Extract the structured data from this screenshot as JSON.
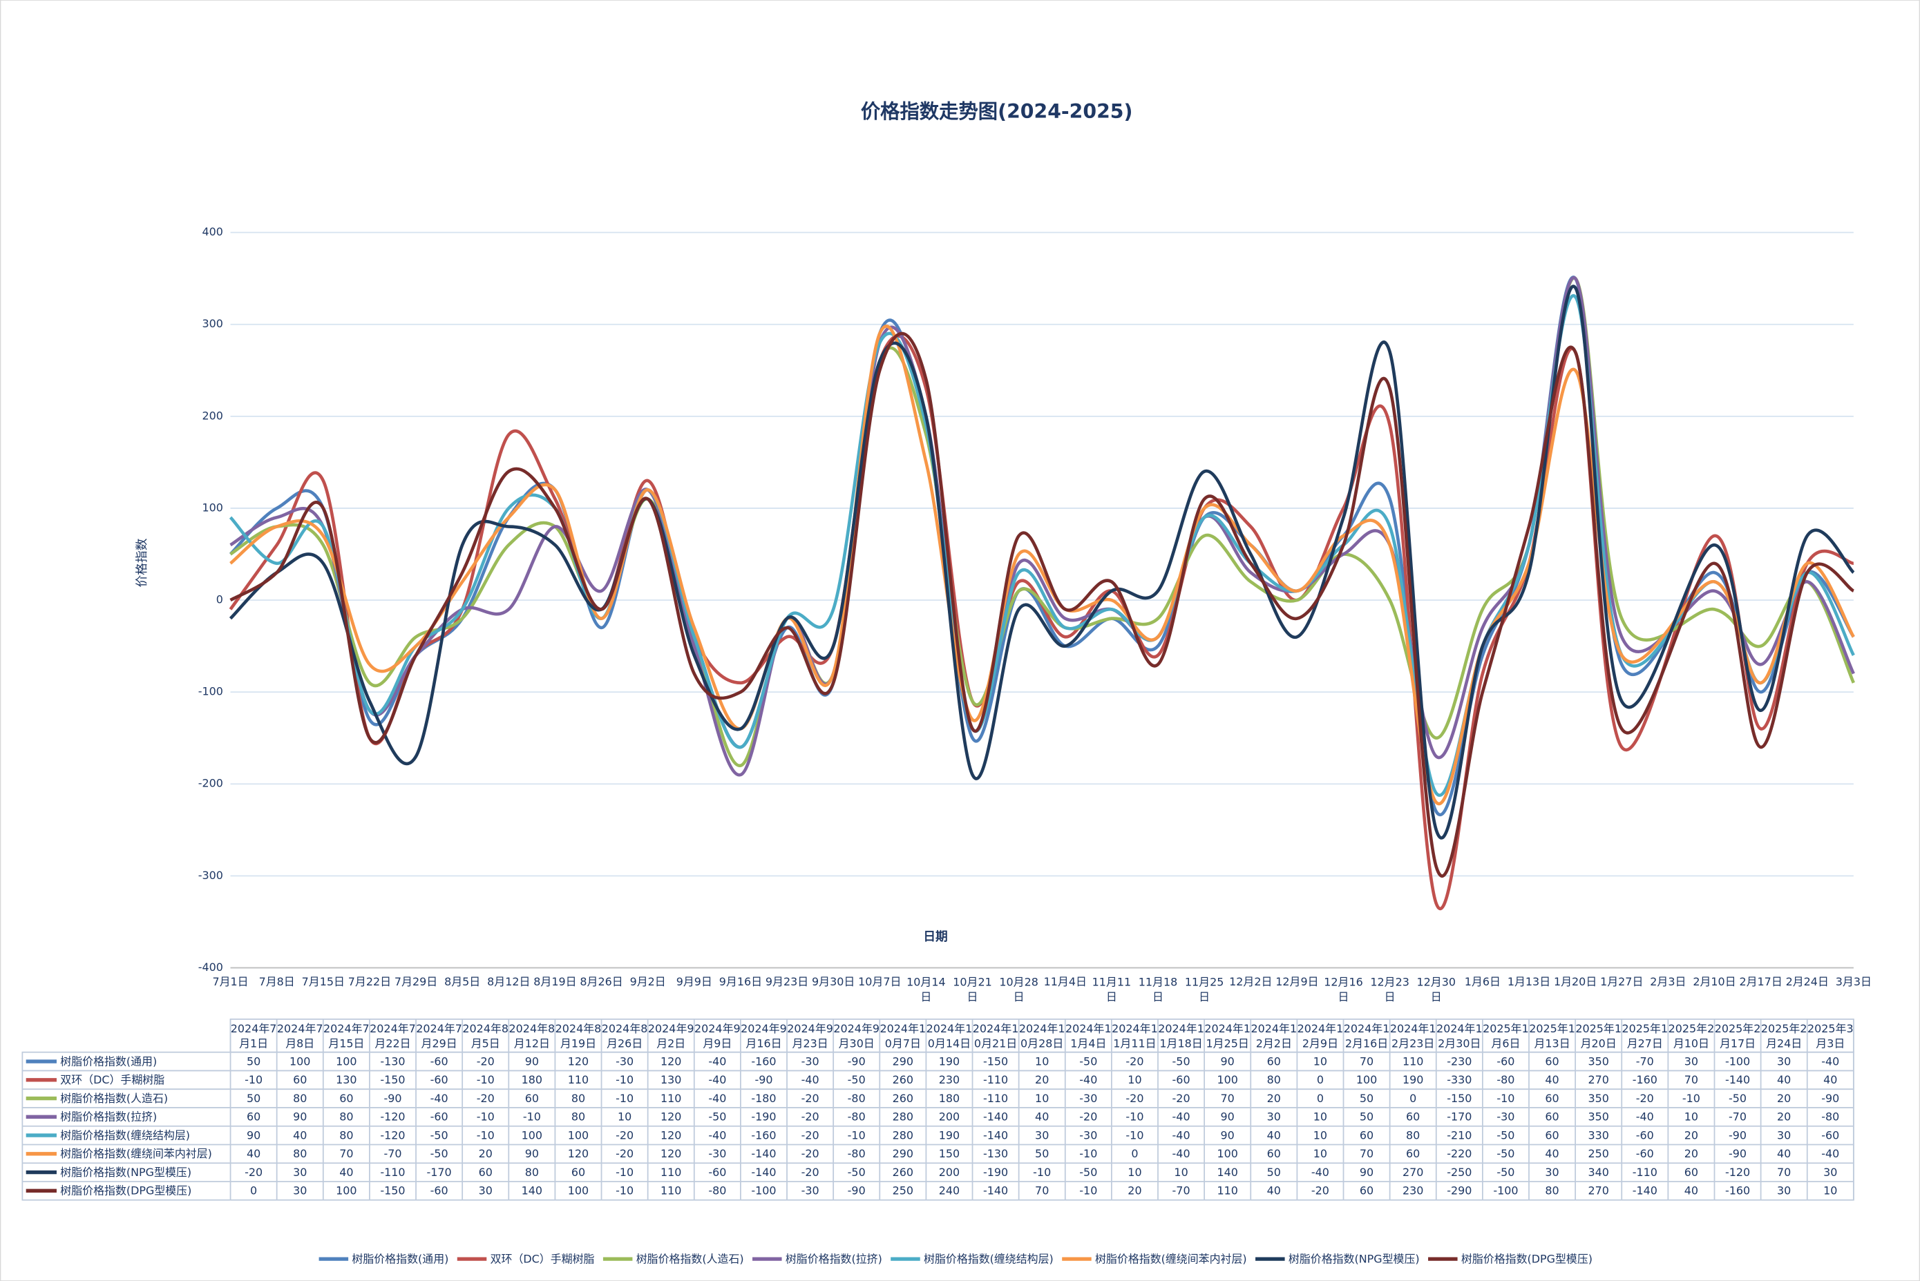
{
  "chart_data": {
    "type": "line",
    "title": "价格指数走势图(2024-2025)",
    "y_label": "价格指数",
    "x_label": "日期",
    "x_axis_labels": [
      "7月1日",
      "7月8日",
      "7月15日",
      "7月22日",
      "7月29日",
      "8月5日",
      "8月12日",
      "8月19日",
      "8月26日",
      "9月2日",
      "9月9日",
      "9月16日",
      "9月23日",
      "9月30日",
      "10月7日",
      "10月14日",
      "10月21日",
      "10月28日",
      "11月4日",
      "11月11日",
      "11月18日",
      "11月25日",
      "12月2日",
      "12月9日",
      "12月16日",
      "12月23日",
      "12月30日",
      "1月6日",
      "1月13日",
      "1月20日",
      "1月27日",
      "2月3日",
      "2月10日",
      "2月17日",
      "2月24日",
      "3月3日"
    ],
    "categories": [
      "2024年7月1日",
      "2024年7月8日",
      "2024年7月15日",
      "2024年7月22日",
      "2024年7月29日",
      "2024年8月5日",
      "2024年8月12日",
      "2024年8月19日",
      "2024年8月26日",
      "2024年9月2日",
      "2024年9月9日",
      "2024年9月16日",
      "2024年9月23日",
      "2024年9月30日",
      "2024年10月7日",
      "2024年10月14日",
      "2024年10月21日",
      "2024年10月28日",
      "2024年11月4日",
      "2024年11月11日",
      "2024年11月18日",
      "2024年11月25日",
      "2024年12月2日",
      "2024年12月9日",
      "2024年12月16日",
      "2024年12月23日",
      "2024年12月30日",
      "2025年1月6日",
      "2025年1月13日",
      "2025年1月20日",
      "2025年1月27日",
      "2025年2月10日",
      "2025年2月17日",
      "2025年2月24日",
      "2025年3月3日"
    ],
    "series": [
      {
        "name": "树脂价格指数(通用)",
        "color": "#4f81bd",
        "values": [
          50,
          100,
          100,
          -130,
          -60,
          -20,
          90,
          120,
          -30,
          120,
          -40,
          -160,
          -30,
          -90,
          290,
          190,
          -150,
          10,
          -50,
          -20,
          -50,
          90,
          60,
          10,
          70,
          110,
          -230,
          -60,
          60,
          350,
          -70,
          30,
          -100,
          30,
          -40
        ]
      },
      {
        "name": "双环（DC）手糊树脂",
        "color": "#c0504d",
        "values": [
          -10,
          60,
          130,
          -150,
          -60,
          -10,
          180,
          110,
          -10,
          130,
          -40,
          -90,
          -40,
          -50,
          260,
          230,
          -110,
          20,
          -40,
          10,
          -60,
          100,
          80,
          0,
          100,
          190,
          -330,
          -80,
          40,
          270,
          -160,
          70,
          -140,
          40,
          40
        ]
      },
      {
        "name": "树脂价格指数(人造石)",
        "color": "#9bbb59",
        "values": [
          50,
          80,
          60,
          -90,
          -40,
          -20,
          60,
          80,
          -10,
          110,
          -40,
          -180,
          -20,
          -80,
          260,
          180,
          -110,
          10,
          -30,
          -20,
          -20,
          70,
          20,
          0,
          50,
          0,
          -150,
          -10,
          60,
          350,
          -20,
          -10,
          -50,
          20,
          -90
        ]
      },
      {
        "name": "树脂价格指数(拉挤)",
        "color": "#8064a2",
        "values": [
          60,
          90,
          80,
          -120,
          -60,
          -10,
          -10,
          80,
          10,
          120,
          -50,
          -190,
          -20,
          -80,
          280,
          200,
          -140,
          40,
          -20,
          -10,
          -40,
          90,
          30,
          10,
          50,
          60,
          -170,
          -30,
          60,
          350,
          -40,
          10,
          -70,
          20,
          -80
        ]
      },
      {
        "name": "树脂价格指数(缠绕结构层)",
        "color": "#4bacc6",
        "values": [
          90,
          40,
          80,
          -120,
          -50,
          -10,
          100,
          100,
          -20,
          120,
          -40,
          -160,
          -20,
          -10,
          280,
          190,
          -140,
          30,
          -30,
          -10,
          -40,
          90,
          40,
          10,
          60,
          80,
          -210,
          -50,
          60,
          330,
          -60,
          20,
          -90,
          30,
          -60
        ]
      },
      {
        "name": "树脂价格指数(缠绕间苯内衬层)",
        "color": "#f79646",
        "values": [
          40,
          80,
          70,
          -70,
          -50,
          20,
          90,
          120,
          -20,
          120,
          -30,
          -140,
          -20,
          -80,
          290,
          150,
          -130,
          50,
          -10,
          0,
          -40,
          100,
          60,
          10,
          70,
          60,
          -220,
          -50,
          40,
          250,
          -60,
          20,
          -90,
          40,
          -40
        ]
      },
      {
        "name": "树脂价格指数(NPG型模压)",
        "color": "#1f3b5c",
        "values": [
          -20,
          30,
          40,
          -110,
          -170,
          60,
          80,
          60,
          -10,
          110,
          -60,
          -140,
          -20,
          -50,
          260,
          200,
          -190,
          -10,
          -50,
          10,
          10,
          140,
          50,
          -40,
          90,
          270,
          -250,
          -50,
          30,
          340,
          -110,
          60,
          -120,
          70,
          30
        ]
      },
      {
        "name": "树脂价格指数(DPG型模压)",
        "color": "#772c2a",
        "values": [
          0,
          30,
          100,
          -150,
          -60,
          30,
          140,
          100,
          -10,
          110,
          -80,
          -100,
          -30,
          -90,
          250,
          240,
          -140,
          70,
          -10,
          20,
          -70,
          110,
          40,
          -20,
          60,
          230,
          -290,
          -100,
          80,
          270,
          -140,
          40,
          -160,
          30,
          10
        ]
      }
    ],
    "ylim": [
      -400,
      400
    ],
    "yticks": [
      -400,
      -300,
      -200,
      -100,
      0,
      100,
      200,
      300,
      400
    ],
    "grid": true
  }
}
